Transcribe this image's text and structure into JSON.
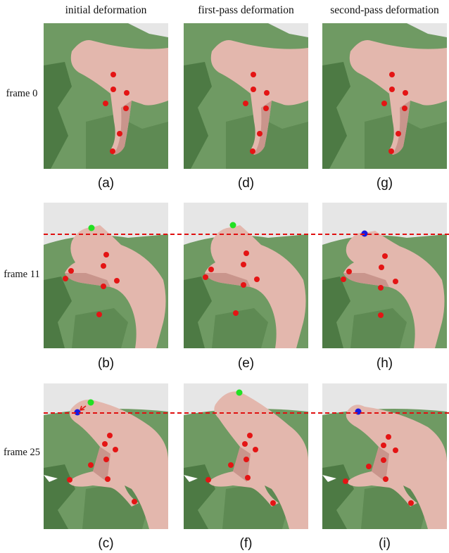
{
  "columns": {
    "col1": "initial deformation",
    "col2": "first-pass deformation",
    "col3": "second-pass deformation"
  },
  "rows": {
    "row1": "frame 0",
    "row2": "frame 11",
    "row3": "frame 25"
  },
  "captions": {
    "a": "(a)",
    "b": "(b)",
    "c": "(c)",
    "d": "(d)",
    "e": "(e)",
    "f": "(f)",
    "g": "(g)",
    "h": "(h)",
    "i": "(i)"
  },
  "colors": {
    "terrain": "#6f9a63",
    "terrain_dark": "#4d7a44",
    "skin": "#e3b7ad",
    "skin_shadow": "#c9958c",
    "sky": "#e6e6e6",
    "marker_red": "#e41414",
    "marker_green": "#22e022",
    "marker_blue": "#1818e0",
    "reference_line": "#e01010"
  }
}
